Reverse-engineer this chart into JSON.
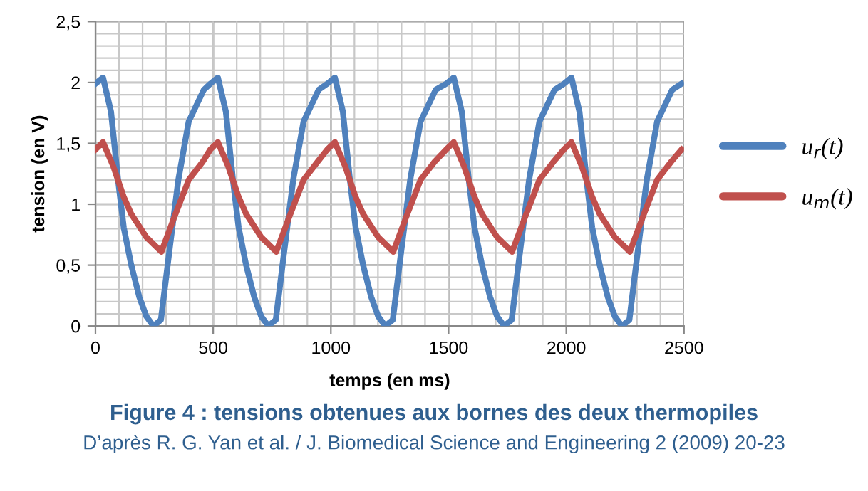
{
  "chart_data": {
    "type": "line",
    "title": "Figure 4 : tensions obtenues aux bornes des deux thermopiles",
    "annotations": [
      "D’après R. G. Yan et al. / J. Biomedical Science and Engineering 2 (2009) 20-23"
    ],
    "xlabel": "temps (en ms)",
    "ylabel": "tension (en V)",
    "xlim": [
      0,
      2500
    ],
    "xticks": [
      0,
      500,
      1000,
      1500,
      2000,
      2500
    ],
    "ylim": [
      0,
      2.5
    ],
    "yticks": [
      0,
      {
        "value": 0.5,
        "label": "0,5"
      },
      1,
      {
        "value": 1.5,
        "label": "1,5"
      },
      2,
      {
        "value": 2.5,
        "label": "2,5"
      }
    ],
    "grid": true,
    "legend": "right",
    "marker": "none",
    "line_style": "solid",
    "series": [
      {
        "name": "u$_{r}$(t)",
        "color": "#4f81bd",
        "x": [
          0,
          32,
          66,
          96,
          120,
          152,
          186,
          216,
          246,
          278,
          316,
          352,
          396,
          460,
          488,
          520,
          554,
          584,
          608,
          640,
          674,
          704,
          734,
          766,
          804,
          840,
          884,
          948,
          985,
          1017,
          1051,
          1081,
          1105,
          1137,
          1171,
          1201,
          1231,
          1263,
          1301,
          1337,
          1381,
          1445,
          1490,
          1522,
          1556,
          1586,
          1610,
          1642,
          1676,
          1706,
          1736,
          1768,
          1806,
          1842,
          1886,
          1950,
          1990,
          2022,
          2056,
          2086,
          2110,
          2142,
          2176,
          2206,
          2236,
          2268,
          2306,
          2342,
          2386,
          2450,
          2490
        ],
        "values": [
          1.99,
          2.04,
          1.76,
          1.2,
          0.81,
          0.5,
          0.24,
          0.08,
          0,
          0.05,
          0.65,
          1.2,
          1.68,
          1.94,
          1.99,
          2.04,
          1.76,
          1.2,
          0.81,
          0.5,
          0.24,
          0.08,
          0,
          0.05,
          0.65,
          1.2,
          1.68,
          1.94,
          1.99,
          2.04,
          1.76,
          1.2,
          0.81,
          0.5,
          0.24,
          0.08,
          0,
          0.05,
          0.65,
          1.2,
          1.68,
          1.94,
          1.99,
          2.04,
          1.76,
          1.2,
          0.81,
          0.5,
          0.24,
          0.08,
          0,
          0.05,
          0.65,
          1.2,
          1.68,
          1.94,
          1.99,
          2.04,
          1.76,
          1.2,
          0.81,
          0.5,
          0.24,
          0.08,
          0,
          0.05,
          0.65,
          1.2,
          1.68,
          1.94,
          1.99
        ]
      },
      {
        "name": "u$_{m}$(t)",
        "color": "#c0504d",
        "x": [
          0,
          32,
          76,
          120,
          152,
          216,
          280,
          336,
          396,
          456,
          488,
          520,
          564,
          608,
          640,
          704,
          768,
          824,
          884,
          944,
          985,
          1017,
          1061,
          1105,
          1137,
          1201,
          1265,
          1321,
          1381,
          1441,
          1490,
          1522,
          1566,
          1610,
          1642,
          1706,
          1770,
          1826,
          1886,
          1946,
          1990,
          2022,
          2066,
          2110,
          2142,
          2206,
          2270,
          2326,
          2386,
          2446,
          2490
        ],
        "values": [
          1.45,
          1.51,
          1.31,
          1.06,
          0.92,
          0.73,
          0.61,
          0.9,
          1.2,
          1.35,
          1.45,
          1.51,
          1.31,
          1.06,
          0.92,
          0.73,
          0.61,
          0.9,
          1.2,
          1.35,
          1.45,
          1.51,
          1.31,
          1.06,
          0.92,
          0.73,
          0.61,
          0.9,
          1.2,
          1.35,
          1.45,
          1.51,
          1.31,
          1.06,
          0.92,
          0.73,
          0.61,
          0.9,
          1.2,
          1.35,
          1.45,
          1.51,
          1.31,
          1.06,
          0.92,
          0.73,
          0.61,
          0.9,
          1.2,
          1.35,
          1.45
        ]
      }
    ]
  }
}
